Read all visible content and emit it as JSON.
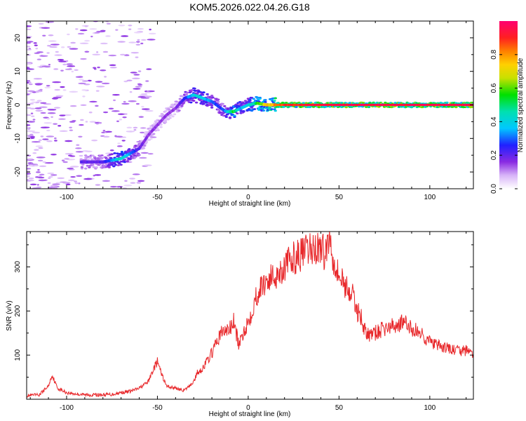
{
  "figure_title": "KOM5.2026.022.04.26.G18",
  "chart_data": [
    {
      "type": "heatmap",
      "title": "",
      "xlabel": "Height of straight line (km)",
      "ylabel": "Frequency (Hz)",
      "xlim": [
        -122,
        124
      ],
      "ylim": [
        -25,
        25
      ],
      "xticks": [
        -100,
        -50,
        0,
        50,
        100
      ],
      "xtick_labels": [
        "-100",
        "-50",
        "0",
        "50",
        "100"
      ],
      "yticks": [
        -20,
        -10,
        0,
        10,
        20
      ],
      "ytick_labels": [
        "-20",
        "-10",
        "0",
        "10",
        "20"
      ],
      "ridge": {
        "description": "dominant spectral line (frequency vs height)",
        "x": [
          -90,
          -80,
          -70,
          -60,
          -55,
          -50,
          -45,
          -40,
          -35,
          -30,
          -25,
          -20,
          -15,
          -12,
          -8,
          -4,
          0,
          5,
          10,
          20,
          50,
          100,
          124
        ],
        "y": [
          -17,
          -17,
          -16,
          -13,
          -9,
          -6,
          -3,
          -1,
          2,
          3,
          2,
          1,
          -1,
          -2,
          -2,
          -1,
          0,
          0.5,
          0,
          0,
          0,
          0,
          0
        ],
        "amplitude": [
          0.2,
          0.2,
          0.45,
          0.2,
          0.15,
          0.15,
          0.15,
          0.15,
          0.25,
          0.4,
          0.4,
          0.3,
          0.25,
          0.35,
          0.55,
          0.35,
          0.4,
          0.55,
          0.7,
          0.9,
          0.95,
          0.95,
          0.95
        ]
      },
      "colorbar": {
        "label": "Normalized spectral amplitude",
        "range": [
          0,
          1
        ],
        "ticks": [
          0.0,
          0.2,
          0.4,
          0.6,
          0.8
        ],
        "tick_labels": [
          "0.0",
          "0.2",
          "0.4",
          "0.6",
          "0.8"
        ]
      }
    },
    {
      "type": "line",
      "title": "",
      "xlabel": "Height of straight line (km)",
      "ylabel": "SNR (v/v)",
      "xlim": [
        -122,
        124
      ],
      "ylim": [
        0,
        380
      ],
      "xticks": [
        -100,
        -50,
        0,
        50,
        100
      ],
      "xtick_labels": [
        "-100",
        "-50",
        "0",
        "50",
        "100"
      ],
      "yticks": [
        100,
        200,
        300
      ],
      "ytick_labels": [
        "100",
        "200",
        "300"
      ],
      "series": [
        {
          "name": "SNR",
          "color": "#e8282b",
          "x": [
            -122,
            -115,
            -110,
            -108,
            -105,
            -100,
            -95,
            -90,
            -85,
            -80,
            -75,
            -70,
            -65,
            -60,
            -55,
            -52,
            -50,
            -48,
            -45,
            -40,
            -35,
            -30,
            -28,
            -25,
            -20,
            -15,
            -10,
            -8,
            -5,
            -2,
            0,
            5,
            10,
            15,
            20,
            25,
            30,
            35,
            40,
            42,
            44,
            45,
            47,
            50,
            55,
            58,
            60,
            62,
            65,
            70,
            75,
            80,
            85,
            90,
            95,
            100,
            105,
            110,
            115,
            120,
            124
          ],
          "y": [
            8,
            10,
            30,
            55,
            25,
            15,
            12,
            10,
            10,
            10,
            11,
            15,
            18,
            25,
            40,
            70,
            85,
            60,
            30,
            25,
            20,
            40,
            60,
            70,
            105,
            150,
            160,
            175,
            120,
            160,
            175,
            240,
            270,
            280,
            300,
            320,
            330,
            340,
            345,
            330,
            355,
            365,
            320,
            280,
            250,
            230,
            200,
            190,
            145,
            150,
            160,
            165,
            175,
            160,
            150,
            130,
            120,
            115,
            110,
            110,
            105
          ]
        }
      ]
    }
  ]
}
